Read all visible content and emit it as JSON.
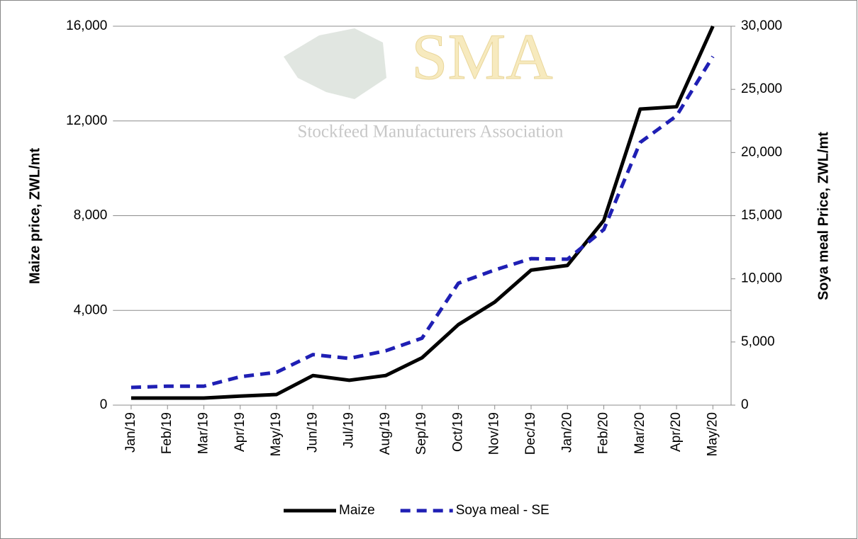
{
  "chart_data": {
    "type": "line",
    "watermark": {
      "logo": "SMA",
      "tagline": "Stockfeed Manufacturers Association"
    },
    "ylabel": "Maize price, ZWL/mt",
    "y2label": "Soya meal Price, ZWL/mt",
    "categories": [
      "Jan/19",
      "Feb/19",
      "Mar/19",
      "Apr/19",
      "May/19",
      "Jun/19",
      "Jul/19",
      "Aug/19",
      "Sep/19",
      "Oct/19",
      "Nov/19",
      "Dec/19",
      "Jan/20",
      "Feb/20",
      "Mar/20",
      "Apr/20",
      "May/20"
    ],
    "series": [
      {
        "name": "Maize",
        "color": "#000000",
        "dash": false,
        "axis": "y",
        "values": [
          300,
          300,
          300,
          380,
          450,
          1250,
          1050,
          1250,
          2000,
          3400,
          4350,
          5700,
          5900,
          7800,
          12500,
          12600,
          16000
        ]
      },
      {
        "name": "Soya meal - SE",
        "color": "#1f1fb4",
        "dash": true,
        "axis": "y2",
        "values": [
          1400,
          1500,
          1500,
          2250,
          2600,
          4000,
          3700,
          4300,
          5300,
          9650,
          10700,
          11600,
          11550,
          13900,
          20800,
          22900,
          27600
        ]
      }
    ],
    "ylim": [
      0,
      16000
    ],
    "yticks": [
      0,
      {
        "value": 4000,
        "label": "4,000"
      },
      {
        "value": 8000,
        "label": "8,000"
      },
      {
        "value": 12000,
        "label": "12,000"
      },
      {
        "value": 16000,
        "label": "16,000"
      }
    ],
    "y2lim": [
      0,
      30000
    ],
    "y2ticks": [
      0,
      {
        "value": 5000,
        "label": "5,000"
      },
      {
        "value": 10000,
        "label": "10,000"
      },
      {
        "value": 15000,
        "label": "15,000"
      },
      {
        "value": 20000,
        "label": "20,000"
      },
      {
        "value": 25000,
        "label": "25,000"
      },
      {
        "value": 30000,
        "label": "30,000"
      }
    ],
    "grid": true,
    "legend": "bottom"
  }
}
